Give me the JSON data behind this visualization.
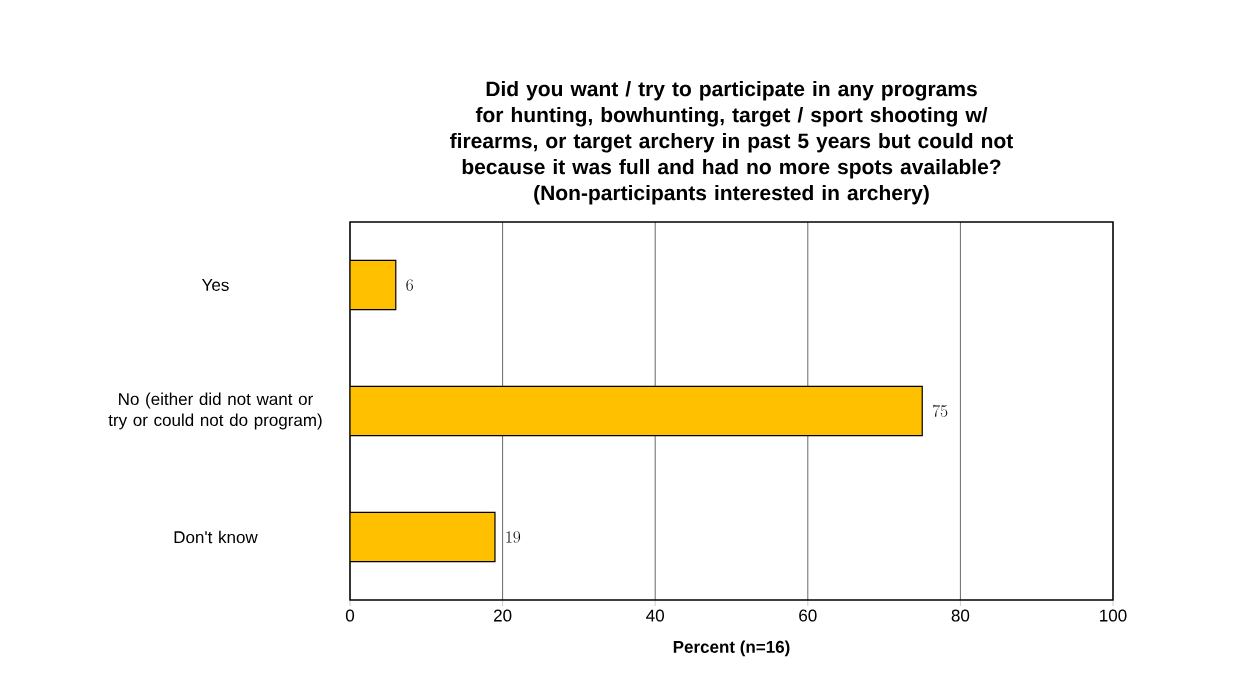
{
  "chart_data": {
    "type": "bar",
    "orientation": "horizontal",
    "title": "Did you want / try to participate in any programs for hunting, bowhunting, target / sport shooting w/ firearms, or target archery in past 5 years but could not because it was full and had no more spots available?",
    "subtitle": "(Non-participants interested in archery)",
    "categories": [
      "Yes",
      "No (either did not want or try or could not do program)",
      "Don't know"
    ],
    "values": [
      6,
      75,
      19
    ],
    "color": "#ffc000",
    "data_labels": true,
    "xlim": [
      0,
      100
    ],
    "xticks": [
      0,
      20,
      40,
      60,
      80,
      100
    ],
    "grid": "x",
    "xlabel": "Percent (n=16)"
  }
}
